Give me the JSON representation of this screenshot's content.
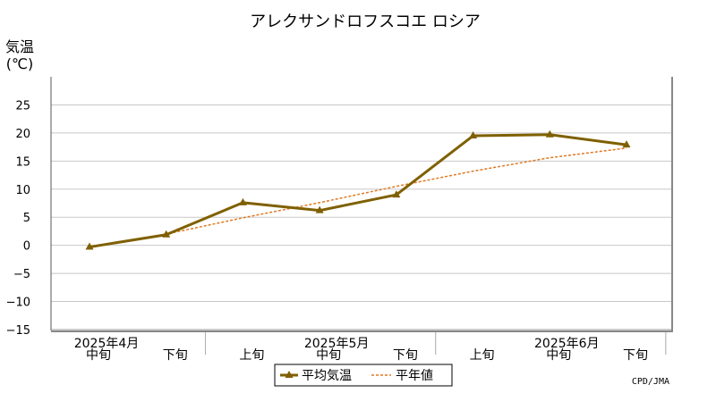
{
  "chart_data": {
    "type": "line",
    "title": "アレクサンドロフスコエ ロシア",
    "ylabel_line1": "気温",
    "ylabel_line2": "(℃)",
    "ylim": [
      -15,
      30
    ],
    "yticks": [
      -15,
      -10,
      -5,
      0,
      5,
      10,
      15,
      20,
      25
    ],
    "grid": true,
    "x_periods": [
      {
        "month_label": "2025年4月",
        "dekad": "中旬"
      },
      {
        "month_label": "",
        "dekad": "下旬"
      },
      {
        "month_label": "",
        "dekad": "上旬"
      },
      {
        "month_label": "2025年5月",
        "dekad": "中旬"
      },
      {
        "month_label": "",
        "dekad": "下旬"
      },
      {
        "month_label": "",
        "dekad": "上旬"
      },
      {
        "month_label": "2025年6月",
        "dekad": "中旬"
      },
      {
        "month_label": "",
        "dekad": "下旬"
      }
    ],
    "series": [
      {
        "name": "平均気温",
        "values": [
          -0.3,
          1.9,
          7.6,
          6.2,
          9.0,
          19.5,
          19.7,
          17.9
        ],
        "color": "#7f6000",
        "style": "solid",
        "marker": "triangle"
      },
      {
        "name": "平年値",
        "values": [
          -0.4,
          2.0,
          4.9,
          7.6,
          10.5,
          13.2,
          15.6,
          17.3
        ],
        "color": "#e07820",
        "style": "dotted",
        "marker": "none"
      }
    ],
    "legend_position": "bottom-center",
    "credit": "CPD/JMA"
  }
}
